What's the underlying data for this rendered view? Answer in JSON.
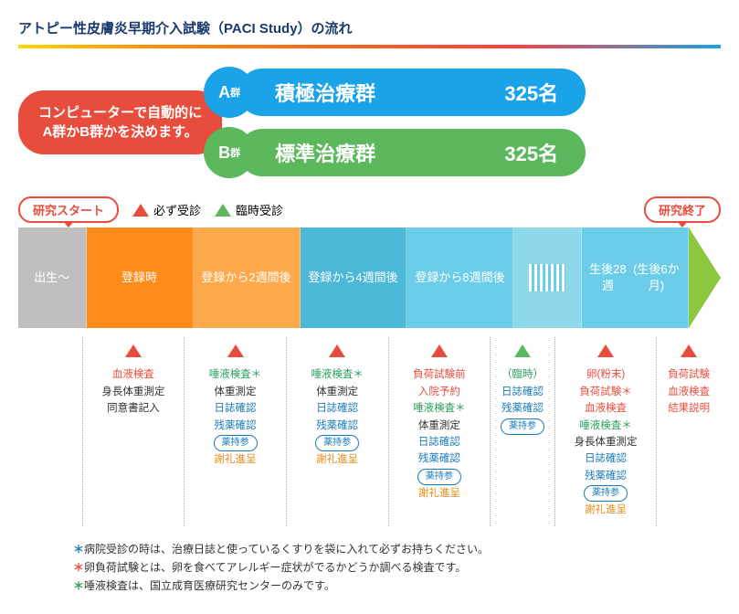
{
  "title": "アトピー性皮膚炎早期介入試験（PACI Study）の流れ",
  "colors": {
    "blue": "#1aa3e8",
    "green": "#5cb85c",
    "red": "#e84c3d",
    "orange": "#ff8c1a",
    "orange2": "#ffa94d",
    "teal": "#4db8d8",
    "teal2": "#6bcde7",
    "teal3": "#8dd8eb",
    "lime": "#8dc63f",
    "gray": "#bfbfbf",
    "tagred": "#e84c3d",
    "darkteal": "#0088aa"
  },
  "randomize": {
    "line1": "コンピューターで自動的に",
    "line2": "A群かB群かを決めます。"
  },
  "groups": [
    {
      "letter": "A",
      "sub": "群",
      "name": "積極治療群",
      "count": "325名",
      "circle_color": "#1aa3e8",
      "pill_color": "#1aa3e8"
    },
    {
      "letter": "B",
      "sub": "群",
      "name": "標準治療群",
      "count": "325名",
      "circle_color": "#5cb85c",
      "pill_color": "#5cb85c"
    }
  ],
  "legend": {
    "start_tag": "研究スタート",
    "end_tag": "研究終了",
    "must": "必ず受診",
    "optional": "臨時受診"
  },
  "timeline": [
    {
      "label": "出生～",
      "bg": "#bfbfbf",
      "narrow": true
    },
    {
      "label": "登録時",
      "bg": "#ff8c1a"
    },
    {
      "label": "登録から\n2週間後",
      "bg": "#ffa94d"
    },
    {
      "label": "登録から\n4週間後",
      "bg": "#4db8d8"
    },
    {
      "label": "登録から\n8週間後",
      "bg": "#6bcde7"
    },
    {
      "label": "hatch",
      "bg": "#8dd8eb",
      "narrow": true
    },
    {
      "label": "生後28週\n(生後6か月)",
      "bg": "#6bcde7"
    }
  ],
  "arrow_color": "#8dc63f",
  "details": [
    {
      "narrow": true,
      "items": []
    },
    {
      "tri_color": "#e84c3d",
      "items": [
        {
          "text": "血液検査",
          "color": "#e84c3d"
        },
        {
          "text": "身長体重測定",
          "color": "#333"
        },
        {
          "text": "同意書記入",
          "color": "#333"
        }
      ]
    },
    {
      "tri_color": "#e84c3d",
      "items": [
        {
          "text": "唾液検査＊",
          "color": "#2a9e5c"
        },
        {
          "text": "体重測定",
          "color": "#333"
        },
        {
          "text": "日誌確認",
          "color": "#1a7bb8"
        },
        {
          "text": "残薬確認",
          "color": "#1a7bb8"
        },
        {
          "pill": "薬持参",
          "color": "#1a7bb8"
        },
        {
          "text": "謝礼進呈",
          "color": "#e88b1a"
        }
      ]
    },
    {
      "tri_color": "#e84c3d",
      "items": [
        {
          "text": "唾液検査＊",
          "color": "#2a9e5c"
        },
        {
          "text": "体重測定",
          "color": "#333"
        },
        {
          "text": "日誌確認",
          "color": "#1a7bb8"
        },
        {
          "text": "残薬確認",
          "color": "#1a7bb8"
        },
        {
          "pill": "薬持参",
          "color": "#1a7bb8"
        },
        {
          "text": "謝礼進呈",
          "color": "#e88b1a"
        }
      ]
    },
    {
      "tri_color": "#e84c3d",
      "items": [
        {
          "text": "負荷試験前",
          "color": "#e84c3d"
        },
        {
          "text": "入院予約",
          "color": "#e84c3d"
        },
        {
          "text": "唾液検査＊",
          "color": "#2a9e5c"
        },
        {
          "text": "体重測定",
          "color": "#333"
        },
        {
          "text": "日誌確認",
          "color": "#1a7bb8"
        },
        {
          "text": "残薬確認",
          "color": "#1a7bb8"
        },
        {
          "pill": "薬持参",
          "color": "#1a7bb8"
        },
        {
          "text": "謝礼進呈",
          "color": "#e88b1a"
        }
      ]
    },
    {
      "narrow": true,
      "tri_color": "#5cb85c",
      "items": [
        {
          "text": "（臨時）",
          "color": "#2a9e5c"
        },
        {
          "text": "日誌確認",
          "color": "#1a7bb8"
        },
        {
          "text": "残薬確認",
          "color": "#1a7bb8"
        },
        {
          "pill": "薬持参",
          "color": "#1a7bb8"
        }
      ]
    },
    {
      "tri_color": "#e84c3d",
      "items": [
        {
          "text": "卵(粉末)",
          "color": "#e84c3d"
        },
        {
          "text": "負荷試験＊",
          "color": "#e84c3d"
        },
        {
          "text": "血液検査",
          "color": "#e84c3d"
        },
        {
          "text": "唾液検査＊",
          "color": "#2a9e5c"
        },
        {
          "text": "身長体重測定",
          "color": "#333"
        },
        {
          "text": "日誌確認",
          "color": "#1a7bb8"
        },
        {
          "text": "残薬確認",
          "color": "#1a7bb8"
        },
        {
          "pill": "薬持参",
          "color": "#1a7bb8"
        },
        {
          "text": "謝礼進呈",
          "color": "#e88b1a"
        }
      ]
    },
    {
      "narrow": true,
      "tri_color": "#e84c3d",
      "items": [
        {
          "text": "負荷試験",
          "color": "#e84c3d"
        },
        {
          "text": "血液検査",
          "color": "#e84c3d"
        },
        {
          "text": "結果説明",
          "color": "#e84c3d"
        }
      ]
    }
  ],
  "footnotes": [
    {
      "star_color": "#1a7bb8",
      "text": "病院受診の時は、治療日誌と使っているくすりを袋に入れて必ずお持ちください。"
    },
    {
      "star_color": "#e84c3d",
      "text": "卵負荷試験とは、卵を食べてアレルギー症状がでるかどうか調べる検査です。"
    },
    {
      "star_color": "#2a9e5c",
      "text": "唾液検査は、国立成育医療研究センターのみです。"
    }
  ]
}
